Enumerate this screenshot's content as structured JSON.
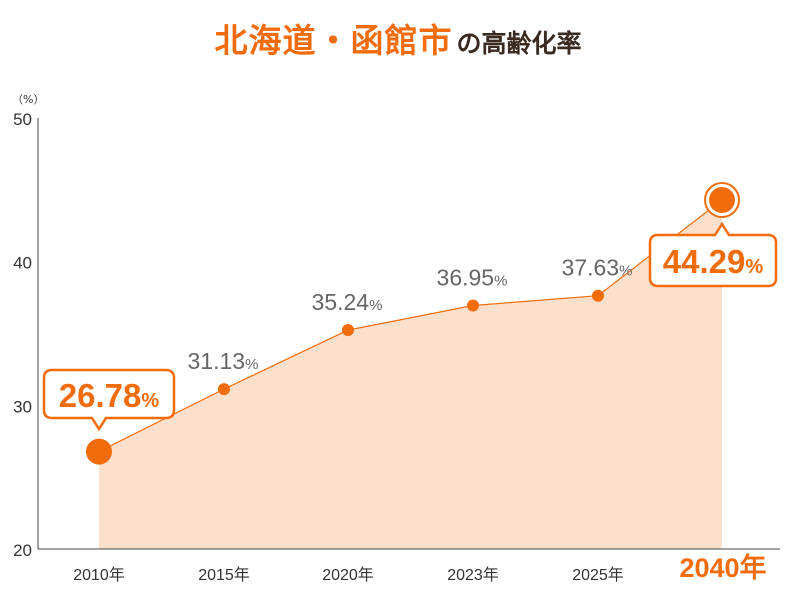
{
  "title": {
    "main": "北海道・函館市",
    "sub": "の高齢化率"
  },
  "chart_data": {
    "type": "area",
    "yunit": "（%）",
    "ylim": [
      20,
      50
    ],
    "yticks": [
      "20",
      "30",
      "40",
      "50"
    ],
    "categories": [
      "2010年",
      "2015年",
      "2020年",
      "2023年",
      "2025年",
      "2040年"
    ],
    "highlight_category": "2040年",
    "values": [
      26.78,
      31.13,
      35.24,
      36.95,
      37.63,
      44.29
    ],
    "value_labels": [
      "26.78",
      "31.13",
      "35.24",
      "36.95",
      "37.63",
      "44.29"
    ],
    "value_suffix": "%",
    "highlight_points": [
      0,
      5
    ],
    "colors": {
      "accent": "#f36c0c",
      "fill": "#fde0cb",
      "axis": "#444444",
      "label": "#666666"
    }
  }
}
